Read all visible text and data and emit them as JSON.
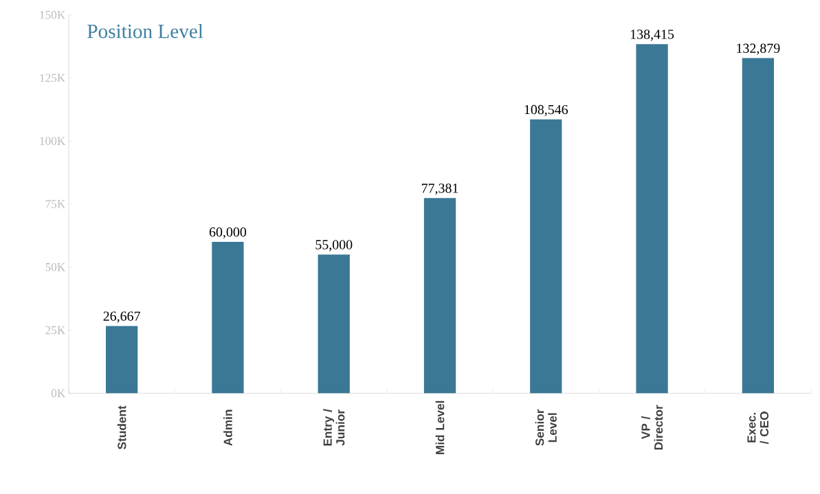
{
  "chart_data": {
    "type": "bar",
    "title": "Position Level",
    "categories": [
      "Student",
      "Admin",
      "Entry / Junior",
      "Mid Level",
      "Senior Level",
      "VP / Director",
      "Exec. / CEO"
    ],
    "values": [
      26667,
      60000,
      55000,
      77381,
      108546,
      138415,
      132879
    ],
    "value_labels": [
      "26,667",
      "60,000",
      "55,000",
      "77,381",
      "108,546",
      "138,415",
      "132,879"
    ],
    "color": "#3b7896",
    "ylim": [
      0,
      150000
    ],
    "yticks": [
      {
        "value": 0,
        "label": "0K"
      },
      {
        "value": 25000,
        "label": "25K"
      },
      {
        "value": 50000,
        "label": "50K"
      },
      {
        "value": 75000,
        "label": "75K"
      },
      {
        "value": 100000,
        "label": "100K"
      },
      {
        "value": 125000,
        "label": "125K"
      },
      {
        "value": 150000,
        "label": "150K"
      }
    ]
  }
}
